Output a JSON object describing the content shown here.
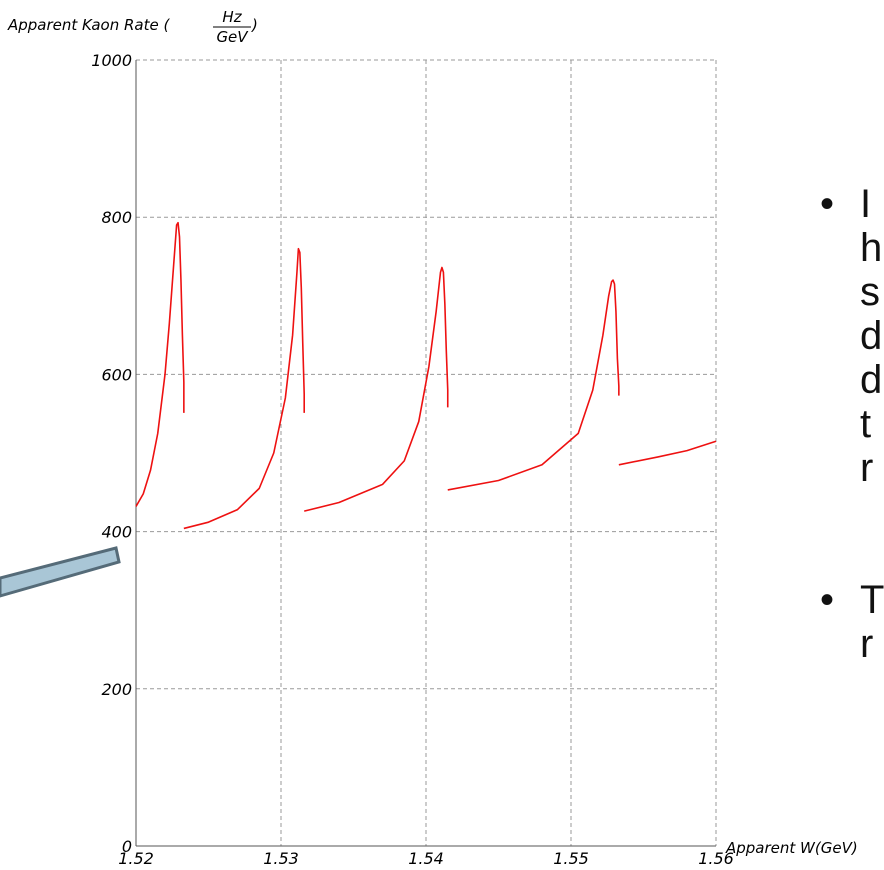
{
  "chart_data": {
    "type": "line",
    "ylabel_prefix": "Apparent Kaon Rate (",
    "ylabel_num": "Hz",
    "ylabel_den": "GeV",
    "ylabel_suffix": ")",
    "xlabel": "Apparent W(GeV)",
    "xlim": [
      1.52,
      1.56
    ],
    "ylim": [
      0,
      1000
    ],
    "x_ticks": [
      "1.52",
      "1.53",
      "1.54",
      "1.55",
      "1.56"
    ],
    "y_ticks": [
      "0",
      "200",
      "400",
      "600",
      "800",
      "1000"
    ],
    "grid": true,
    "series_color": "#ee1111",
    "segments": [
      {
        "x": [
          1.52,
          1.5205,
          1.521,
          1.5215,
          1.522,
          1.5223,
          1.5226,
          1.5228,
          1.5229,
          1.523,
          1.5231,
          1.5232,
          1.5233,
          1.5233
        ],
        "y": [
          432,
          448,
          478,
          525,
          600,
          665,
          740,
          790,
          793,
          775,
          720,
          650,
          590,
          551
        ]
      },
      {
        "x": [
          1.5233,
          1.525,
          1.527,
          1.5285,
          1.5295,
          1.5303,
          1.5308,
          1.5311,
          1.5312,
          1.5313,
          1.5314,
          1.5315,
          1.5316,
          1.5316
        ],
        "y": [
          404,
          412,
          428,
          455,
          500,
          570,
          650,
          730,
          760,
          755,
          710,
          640,
          575,
          551
        ]
      },
      {
        "x": [
          1.5316,
          1.534,
          1.537,
          1.5385,
          1.5395,
          1.5402,
          1.5407,
          1.541,
          1.5411,
          1.5412,
          1.5413,
          1.5414,
          1.5415,
          1.5415
        ],
        "y": [
          426,
          437,
          460,
          490,
          540,
          610,
          680,
          730,
          736,
          730,
          690,
          630,
          580,
          558
        ]
      },
      {
        "x": [
          1.5415,
          1.545,
          1.548,
          1.5505,
          1.5515,
          1.5522,
          1.5526,
          1.5528,
          1.5529,
          1.553,
          1.5531,
          1.5532,
          1.5533,
          1.5533
        ],
        "y": [
          453,
          465,
          485,
          525,
          580,
          650,
          700,
          718,
          720,
          715,
          680,
          620,
          585,
          573
        ]
      },
      {
        "x": [
          1.5533,
          1.556,
          1.558,
          1.56
        ],
        "y": [
          485,
          495,
          503,
          515
        ]
      }
    ]
  },
  "bullets": [
    {
      "dot": "•",
      "text": "I\nh\ns\nd\nd\nt\nr"
    },
    {
      "dot": "•",
      "text": "T\nr"
    }
  ],
  "colors": {
    "pointer_fill": "#a9c6d6",
    "pointer_stroke": "#556b78"
  }
}
